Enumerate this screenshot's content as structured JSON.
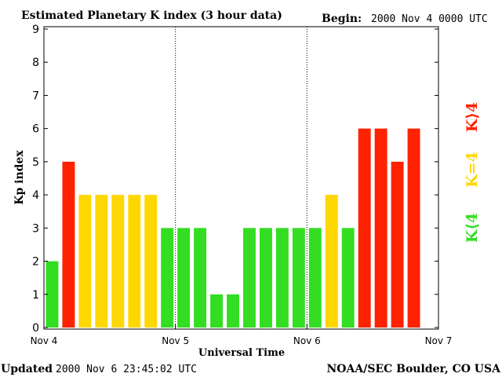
{
  "chart_data": {
    "type": "bar",
    "title": "Estimated Planetary K index (3 hour data)",
    "begin_label": "Begin:",
    "begin_value": "2000 Nov 4 0000 UTC",
    "xlabel": "Universal Time",
    "ylabel": "Kp index",
    "ylim": [
      0,
      9
    ],
    "yticks": [
      "0",
      "1",
      "2",
      "3",
      "4",
      "5",
      "6",
      "7",
      "8",
      "9"
    ],
    "xlim": [
      0,
      72
    ],
    "xticks": [
      {
        "label": "Nov 4",
        "hour": 0
      },
      {
        "label": "Nov 5",
        "hour": 24
      },
      {
        "label": "Nov 6",
        "hour": 48
      },
      {
        "label": "Nov 7",
        "hour": 72
      }
    ],
    "day_dividers": [
      24,
      48
    ],
    "bar_interval_hours": 3,
    "values": [
      2,
      5,
      4,
      4,
      4,
      4,
      4,
      3,
      3,
      3,
      1,
      1,
      3,
      3,
      3,
      3,
      3,
      4,
      3,
      6,
      6,
      5,
      6
    ],
    "legend": [
      {
        "label": "K<4",
        "color": "#33dd22"
      },
      {
        "label": "K=4",
        "color": "#ffd700"
      },
      {
        "label": "K>4",
        "color": "#ff2200"
      }
    ],
    "legend_labels": {
      "low": "K⟨4",
      "equal": "K=4",
      "high": "K⟩4"
    },
    "colors": {
      "low": "#33dd22",
      "equal": "#ffd700",
      "high": "#ff2200"
    },
    "grid": false
  },
  "footer": {
    "updated_label": "Updated",
    "updated_value": "2000 Nov  6 23:45:02 UTC",
    "credit": "NOAA/SEC Boulder, CO USA"
  }
}
